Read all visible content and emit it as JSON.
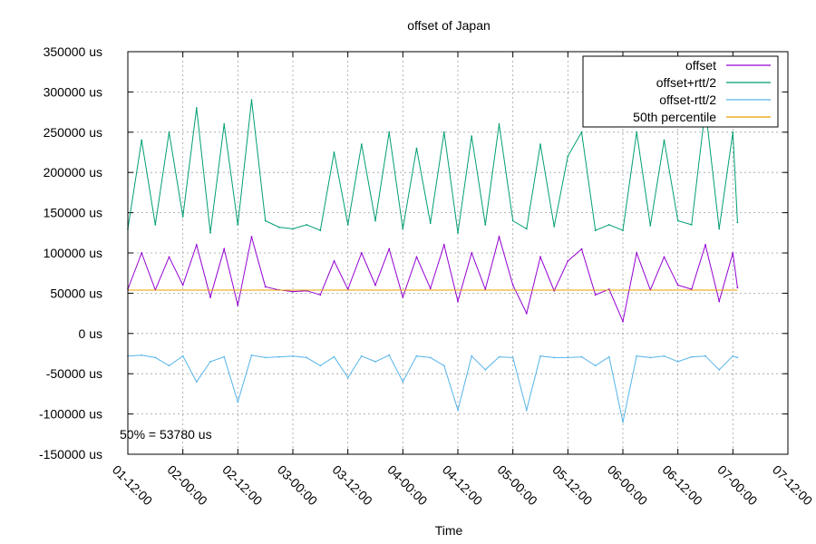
{
  "chart_data": {
    "type": "line",
    "title": "offset of Japan",
    "xlabel": "Time",
    "ylabel": "",
    "annotation": "50% = 53780 us",
    "grid": true,
    "legend_position": "top-right",
    "ylim": [
      -150000,
      350000
    ],
    "xlim": [
      "01-12:00",
      "07-12:00"
    ],
    "y_ticks": [
      "-150000 us",
      "-100000 us",
      "-50000 us",
      "0 us",
      "50000 us",
      "100000 us",
      "150000 us",
      "200000 us",
      "250000 us",
      "300000 us",
      "350000 us"
    ],
    "x_ticks": [
      "01-12:00",
      "02-00:00",
      "02-12:00",
      "03-00:00",
      "03-12:00",
      "04-00:00",
      "04-12:00",
      "05-00:00",
      "05-12:00",
      "06-00:00",
      "06-12:00",
      "07-00:00",
      "07-12:00"
    ],
    "x_sample_hours_from_01_12_00": [
      0,
      3,
      6,
      9,
      12,
      15,
      18,
      21,
      24,
      27,
      30,
      33,
      36,
      39,
      42,
      45,
      48,
      51,
      54,
      57,
      60,
      63,
      66,
      69,
      72,
      75,
      78,
      81,
      84,
      87,
      90,
      93,
      96,
      99,
      102,
      105,
      108,
      111,
      114,
      117,
      120,
      123,
      126,
      129,
      132,
      133
    ],
    "series": [
      {
        "name": "offset",
        "color": "#9400d3",
        "values": [
          55000,
          100000,
          54000,
          95000,
          60000,
          110000,
          45000,
          105000,
          35000,
          120000,
          58000,
          54000,
          52000,
          53000,
          48000,
          90000,
          55000,
          100000,
          60000,
          105000,
          45000,
          95000,
          56000,
          110000,
          40000,
          100000,
          55000,
          120000,
          60000,
          25000,
          95000,
          53000,
          90000,
          105000,
          48000,
          55000,
          15000,
          100000,
          54000,
          95000,
          60000,
          55000,
          110000,
          40000,
          100000,
          57000
        ]
      },
      {
        "name": "offset+rtt/2",
        "color": "#009e73",
        "values": [
          130000,
          240000,
          135000,
          250000,
          145000,
          280000,
          125000,
          260000,
          135000,
          290000,
          140000,
          132000,
          130000,
          135000,
          128000,
          225000,
          135000,
          235000,
          140000,
          250000,
          130000,
          230000,
          137000,
          250000,
          125000,
          245000,
          135000,
          260000,
          140000,
          130000,
          235000,
          133000,
          220000,
          250000,
          128000,
          135000,
          128000,
          250000,
          134000,
          240000,
          140000,
          135000,
          280000,
          130000,
          250000,
          138000
        ]
      },
      {
        "name": "offset-rtt/2",
        "color": "#56b4e9",
        "values": [
          -28000,
          -27000,
          -30000,
          -40000,
          -28000,
          -60000,
          -35000,
          -29000,
          -85000,
          -27000,
          -30000,
          -29000,
          -28000,
          -30000,
          -40000,
          -29000,
          -55000,
          -28000,
          -35000,
          -27000,
          -60000,
          -28000,
          -30000,
          -40000,
          -95000,
          -28000,
          -45000,
          -29000,
          -30000,
          -95000,
          -28000,
          -30000,
          -30000,
          -29000,
          -40000,
          -29000,
          -110000,
          -28000,
          -30000,
          -28000,
          -35000,
          -29000,
          -28000,
          -45000,
          -28000,
          -30000
        ]
      },
      {
        "name": "50th percentile",
        "color": "#e69f00",
        "values": [
          53780,
          53780
        ]
      }
    ]
  }
}
